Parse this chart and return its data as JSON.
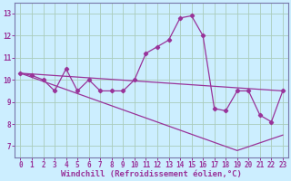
{
  "xlabel": "Windchill (Refroidissement éolien,°C)",
  "bg_color": "#cceeff",
  "grid_color": "#aaccbb",
  "line_color": "#993399",
  "spine_color": "#7777aa",
  "xlim": [
    -0.5,
    23.5
  ],
  "ylim": [
    6.5,
    13.5
  ],
  "xticks": [
    0,
    1,
    2,
    3,
    4,
    5,
    6,
    7,
    8,
    9,
    10,
    11,
    12,
    13,
    14,
    15,
    16,
    17,
    18,
    19,
    20,
    21,
    22,
    23
  ],
  "yticks": [
    7,
    8,
    9,
    10,
    11,
    12,
    13
  ],
  "series1_x": [
    0,
    1,
    2,
    3,
    4,
    5,
    6,
    7,
    8,
    9,
    10,
    11,
    12,
    13,
    14,
    15,
    16,
    17,
    18,
    19,
    20,
    21,
    22,
    23
  ],
  "series1_y": [
    10.3,
    10.2,
    10.0,
    9.5,
    10.5,
    9.5,
    10.0,
    9.5,
    9.5,
    9.5,
    10.0,
    11.2,
    11.5,
    11.8,
    12.8,
    12.9,
    12.0,
    8.7,
    8.6,
    9.5,
    9.5,
    8.4,
    8.1,
    9.5
  ],
  "series2_x": [
    0,
    23
  ],
  "series2_y": [
    10.3,
    9.5
  ],
  "series3_x": [
    0,
    19,
    23
  ],
  "series3_y": [
    10.3,
    6.8,
    7.5
  ],
  "font_color": "#993399",
  "tick_fontsize": 5.5,
  "xlabel_fontsize": 6.5
}
